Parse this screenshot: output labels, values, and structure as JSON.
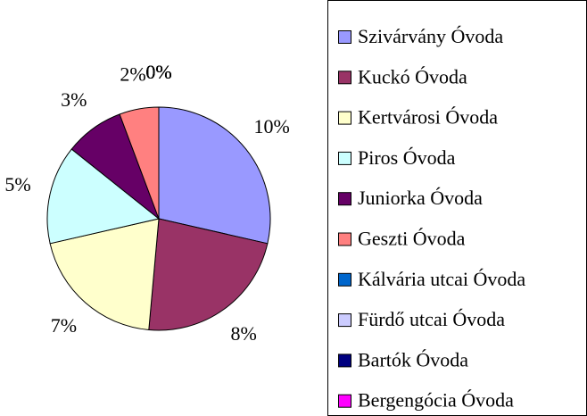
{
  "chart_data": {
    "type": "pie",
    "categories": [
      "Szivárvány Óvoda",
      "Kuckó Óvoda",
      "Kertvárosi Óvoda",
      "Piros Óvoda",
      "Juniorka Óvoda",
      "Geszti Óvoda",
      "Kálvária utcai Óvoda",
      "Fürdő utcai Óvoda",
      "Bartók Óvoda",
      "Bergengócia Óvoda"
    ],
    "values": [
      10,
      8,
      7,
      5,
      3,
      2,
      0,
      0,
      0,
      0
    ],
    "value_labels": [
      "10%",
      "8%",
      "7%",
      "5%",
      "3%",
      "2%",
      "0%",
      "0%",
      "0%",
      "0%"
    ],
    "colors": [
      "#9999ff",
      "#993366",
      "#ffffcc",
      "#ccffff",
      "#660066",
      "#ff8080",
      "#0066cc",
      "#ccccff",
      "#000080",
      "#ff00ff"
    ],
    "legend": "right"
  }
}
